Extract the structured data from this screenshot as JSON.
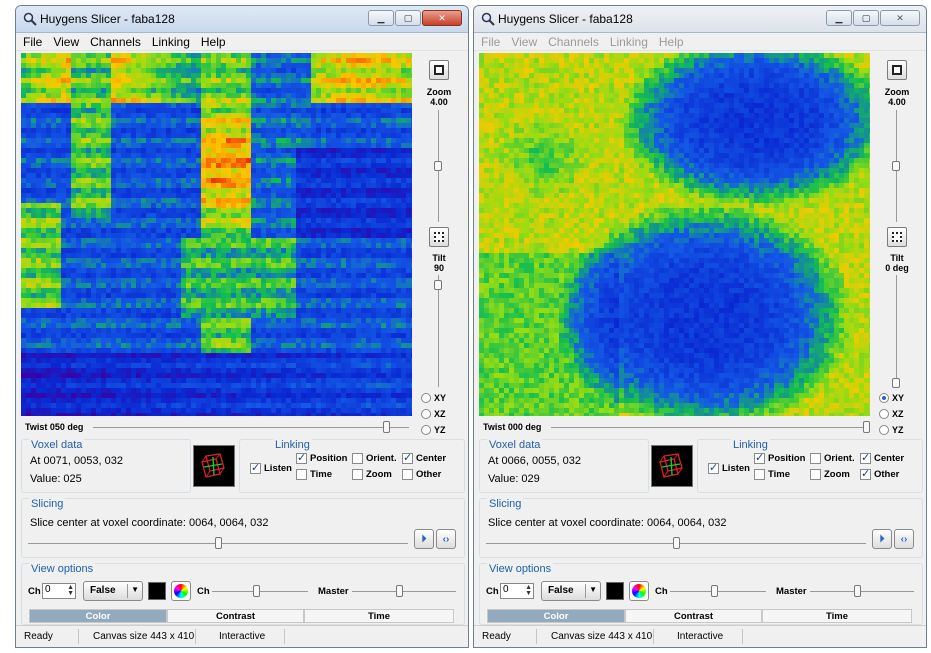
{
  "windows": [
    {
      "id": "left",
      "active": true,
      "title": "Huygens Slicer  - faba128",
      "menu": [
        "File",
        "View",
        "Channels",
        "Linking",
        "Help"
      ],
      "zoom_label": "Zoom",
      "zoom_value": "4.00",
      "tilt_label": "Tilt",
      "tilt_value": "90",
      "orientation_options": [
        "XY",
        "XZ",
        "YZ"
      ],
      "orientation_selected": "none",
      "twist_label": "Twist 050 deg",
      "twist_fraction": 0.93,
      "voxel_title": "Voxel data",
      "voxel_position": "At 0071, 0053, 032",
      "voxel_value": "Value: 025",
      "linking_title": "Linking",
      "linking": {
        "listen": {
          "label": "Listen",
          "checked": true
        },
        "position": {
          "label": "Position",
          "checked": true
        },
        "orient": {
          "label": "Orient.",
          "checked": false
        },
        "center": {
          "label": "Center",
          "checked": true
        },
        "time": {
          "label": "Time",
          "checked": false
        },
        "zoom": {
          "label": "Zoom",
          "checked": false
        },
        "other": {
          "label": "Other",
          "checked": false
        }
      },
      "slicing_title": "Slicing",
      "slice_text": "Slice center at voxel coordinate: 0064, 0064, 032",
      "slice_fraction": 0.5,
      "view_options_title": "View options",
      "ch_label": "Ch",
      "ch_value": "0",
      "false_label": "False",
      "ch_slider_label": "Ch",
      "master_label": "Master",
      "tabs": [
        "Color",
        "Contrast",
        "Time"
      ],
      "active_tab": "Color",
      "status": [
        "Ready",
        "Canvas size 443 x 410",
        "Interactive"
      ]
    },
    {
      "id": "right",
      "active": false,
      "title": "Huygens Slicer  - faba128",
      "menu": [
        "File",
        "View",
        "Channels",
        "Linking",
        "Help"
      ],
      "zoom_label": "Zoom",
      "zoom_value": "4.00",
      "tilt_label": "Tilt",
      "tilt_value": "0 deg",
      "orientation_options": [
        "XY",
        "XZ",
        "YZ"
      ],
      "orientation_selected": "XY",
      "twist_label": "Twist 000 deg",
      "twist_fraction": 1.0,
      "voxel_title": "Voxel data",
      "voxel_position": "At 0066, 0055, 032",
      "voxel_value": "Value: 029",
      "linking_title": "Linking",
      "linking": {
        "listen": {
          "label": "Listen",
          "checked": true
        },
        "position": {
          "label": "Position",
          "checked": true
        },
        "orient": {
          "label": "Orient.",
          "checked": false
        },
        "center": {
          "label": "Center",
          "checked": true
        },
        "time": {
          "label": "Time",
          "checked": false
        },
        "zoom": {
          "label": "Zoom",
          "checked": false
        },
        "other": {
          "label": "Other",
          "checked": true
        }
      },
      "slicing_title": "Slicing",
      "slice_text": "Slice center at voxel coordinate: 0064, 0064, 032",
      "slice_fraction": 0.5,
      "view_options_title": "View options",
      "ch_label": "Ch",
      "ch_value": "0",
      "false_label": "False",
      "ch_slider_label": "Ch",
      "master_label": "Master",
      "tabs": [
        "Color",
        "Contrast",
        "Time"
      ],
      "active_tab": "Color",
      "status": [
        "Ready",
        "Canvas size 443 x 410",
        "Interactive"
      ]
    }
  ],
  "colors": {
    "title_active": "#c8d9ee",
    "group_title": "#1f5fa8",
    "tab_active": "#93a9bd",
    "heatmap_low": "#0020c8",
    "heatmap_high": "#ff2000"
  }
}
